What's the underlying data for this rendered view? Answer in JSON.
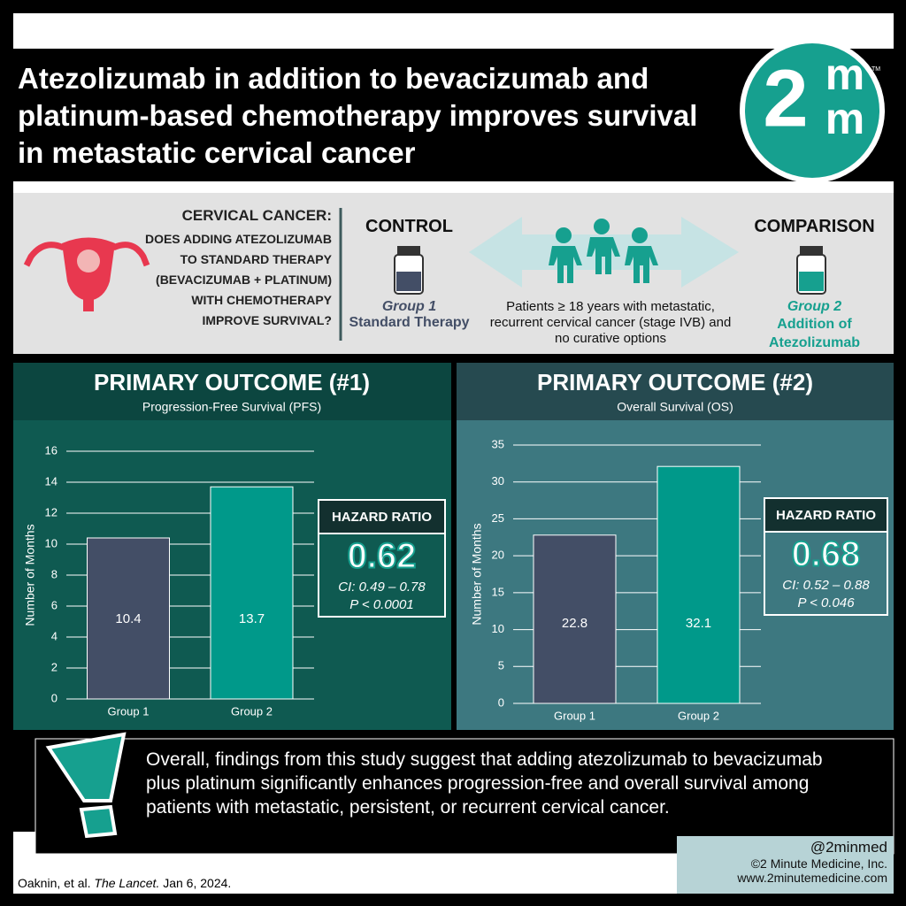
{
  "header": {
    "title": "Atezolizumab in addition to bevacizumab and platinum-based chemotherapy improves survival in metastatic cervical cancer"
  },
  "logo": {
    "digit": "2",
    "top": "m",
    "bottom": "m",
    "mark": "TM"
  },
  "question": {
    "lead": "CERVICAL CANCER:",
    "text": "DOES ADDING ATEZOLIZUMAB TO STANDARD THERAPY (BEVACIZUMAB + PLATINUM) WITH CHEMOTHERAPY IMPROVE SURVIVAL?"
  },
  "control": {
    "heading": "CONTROL",
    "group": "Group 1",
    "arm": "Standard Therapy"
  },
  "comparison": {
    "heading": "COMPARISON",
    "group": "Group 2",
    "arm": "Addition of Atezolizumab"
  },
  "patients": "Patients ≥ 18 years with metastatic, recurrent cervical cancer (stage IVB) and no curative options",
  "chart_data": [
    {
      "type": "bar",
      "title": "PRIMARY OUTCOME (#1)",
      "subtitle": "Progression-Free Survival (PFS)",
      "ylabel": "Number of Months",
      "categories": [
        "Group 1",
        "Group 2"
      ],
      "values": [
        10.4,
        13.7
      ],
      "colors": [
        "#434e66",
        "#00998a"
      ],
      "ylim": [
        0,
        16
      ],
      "yticks": [
        0,
        2,
        4,
        6,
        8,
        10,
        12,
        14,
        16
      ],
      "grid": true,
      "hazard_ratio": {
        "label": "HAZARD RATIO",
        "value": 0.62,
        "ci": "CI: 0.49 – 0.78",
        "p": "P < 0.0001"
      }
    },
    {
      "type": "bar",
      "title": "PRIMARY OUTCOME (#2)",
      "subtitle": "Overall Survival (OS)",
      "ylabel": "Number of Months",
      "categories": [
        "Group 1",
        "Group 2"
      ],
      "values": [
        22.8,
        32.1
      ],
      "colors": [
        "#434e66",
        "#00998a"
      ],
      "ylim": [
        0,
        35
      ],
      "yticks": [
        0,
        5,
        10,
        15,
        20,
        25,
        30,
        35
      ],
      "grid": true,
      "hazard_ratio": {
        "label": "HAZARD RATIO",
        "value": 0.68,
        "ci": "CI: 0.52 – 0.88",
        "p": "P < 0.046"
      }
    }
  ],
  "conclusion": "Overall, findings from this study suggest that adding atezolizumab to bevacizumab plus platinum significantly enhances progression-free and overall survival among patients with metastatic, persistent, or recurrent cervical cancer.",
  "citation": {
    "authors": "Oaknin, et al.",
    "journal": "The Lancet.",
    "date": "Jan 6, 2024."
  },
  "footer": {
    "handle": "@2minmed",
    "company": "©2 Minute Medicine, Inc.",
    "website": "www.2minutemedicine.com"
  }
}
